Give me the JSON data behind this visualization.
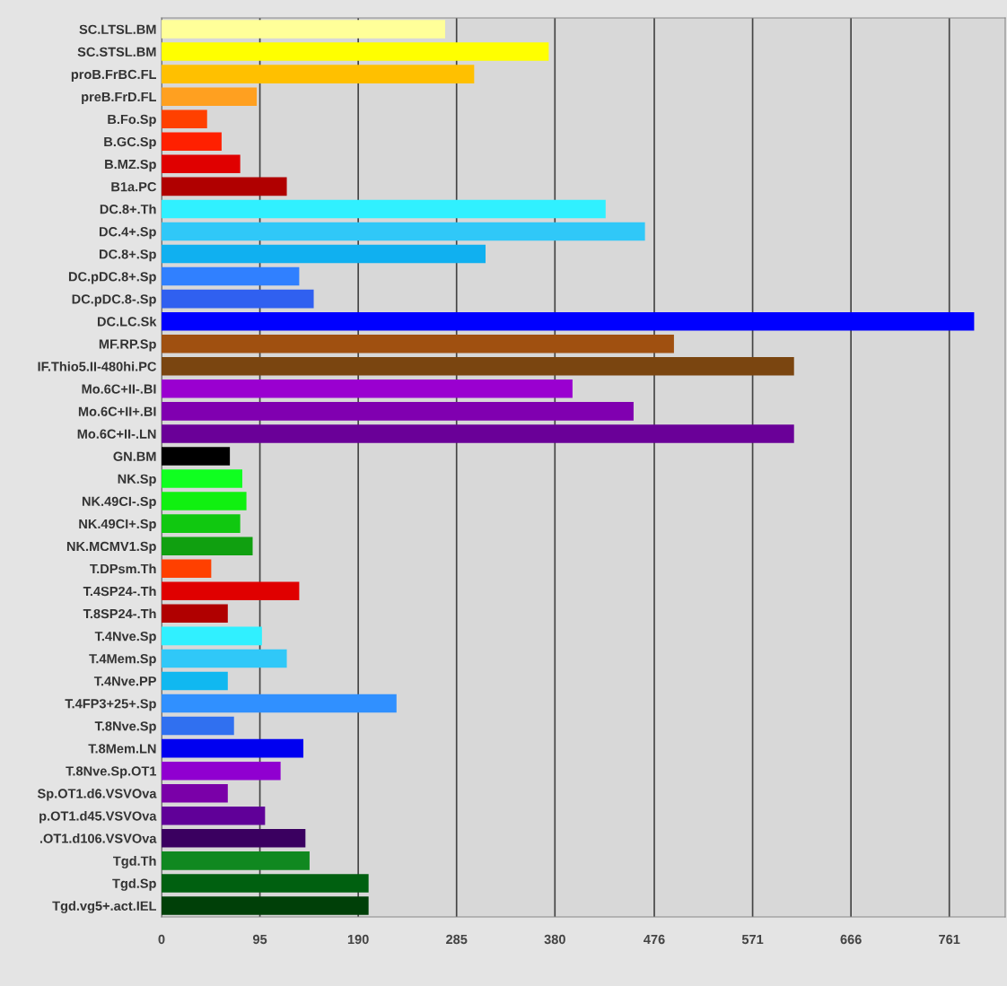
{
  "chart_data": {
    "type": "bar",
    "orientation": "horizontal",
    "categories": [
      "SC.LTSL.BM",
      "SC.STSL.BM",
      "proB.FrBC.FL",
      "preB.FrD.FL",
      "B.Fo.Sp",
      "B.GC.Sp",
      "B.MZ.Sp",
      "B1a.PC",
      "DC.8+.Th",
      "DC.4+.Sp",
      "DC.8+.Sp",
      "DC.pDC.8+.Sp",
      "DC.pDC.8-.Sp",
      "DC.LC.Sk",
      "MF.RP.Sp",
      "IF.Thio5.II-480hi.PC",
      "Mo.6C+II-.BI",
      "Mo.6C+II+.BI",
      "Mo.6C+II-.LN",
      "GN.BM",
      "NK.Sp",
      "NK.49CI-.Sp",
      "NK.49CI+.Sp",
      "NK.MCMV1.Sp",
      "T.DPsm.Th",
      "T.4SP24-.Th",
      "T.8SP24-.Th",
      "T.4Nve.Sp",
      "T.4Mem.Sp",
      "T.4Nve.PP",
      "T.4FP3+25+.Sp",
      "T.8Nve.Sp",
      "T.8Mem.LN",
      "T.8Nve.Sp.OT1",
      "Sp.OT1.d6.VSVOva",
      "p.OT1.d45.VSVOva",
      ".OT1.d106.VSVOva",
      "Tgd.Th",
      "Tgd.Sp",
      "Tgd.vg5+.act.IEL"
    ],
    "values": [
      274,
      374,
      302,
      92,
      44,
      58,
      76,
      121,
      429,
      467,
      313,
      133,
      147,
      785,
      495,
      611,
      397,
      456,
      611,
      66,
      78,
      82,
      76,
      88,
      48,
      133,
      64,
      97,
      121,
      64,
      227,
      70,
      137,
      115,
      64,
      100,
      139,
      143,
      200,
      200
    ],
    "colors": [
      "#ffff99",
      "#ffff00",
      "#ffc000",
      "#ffa020",
      "#ff4000",
      "#ff2000",
      "#e00000",
      "#b00000",
      "#30f0ff",
      "#30c8f8",
      "#10b0f0",
      "#3080ff",
      "#3060f0",
      "#0000ff",
      "#a05010",
      "#7a4510",
      "#9a00d0",
      "#8000b0",
      "#6a0098",
      "#000000",
      "#10ff20",
      "#10f010",
      "#10c810",
      "#10a010",
      "#ff4000",
      "#e00000",
      "#b00000",
      "#30f0ff",
      "#30c8f8",
      "#10b8f0",
      "#3090ff",
      "#3070f0",
      "#0000f0",
      "#9000d0",
      "#7a00a8",
      "#600098",
      "#3a0060",
      "#108820",
      "#006010",
      "#004008"
    ],
    "xlim": [
      0,
      815
    ],
    "xticks": [
      0,
      95,
      190,
      285,
      380,
      476,
      571,
      666,
      761
    ],
    "grid": "x"
  }
}
